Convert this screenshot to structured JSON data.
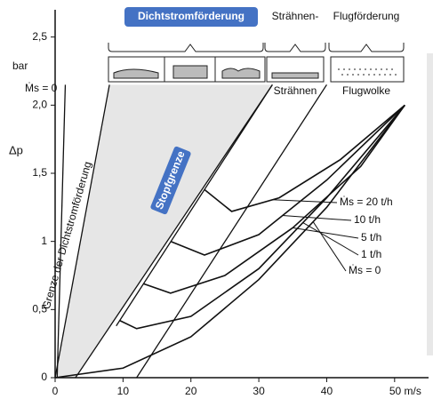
{
  "chart_data": {
    "type": "line",
    "header": "Dichtstromförderung",
    "top_labels": [
      "Strähnen-",
      "Flugförderung"
    ],
    "regime_labels": [
      "Strähnen",
      "Flugwolke"
    ],
    "y_unit": "bar",
    "y_label": "Δp",
    "zero_label": "Ṁs = 0",
    "boundary_label": "Grenze der Dichtstromförderung",
    "limit_label": "Stopfgrenze",
    "xlim": [
      0,
      55
    ],
    "ylim": [
      0,
      2.7
    ],
    "xticks": [
      0,
      10,
      20,
      30,
      40,
      {
        "value": 50,
        "label": "50 m/s"
      }
    ],
    "yticks": [
      0,
      {
        "value": 0.5,
        "label": "0,5"
      },
      1,
      {
        "value": 1.5,
        "label": "1,5"
      },
      {
        "value": 2.0,
        "label": "2,0"
      },
      {
        "value": 2.5,
        "label": "2,5"
      }
    ],
    "series": [
      {
        "name": "Ṁs = 20 t/h",
        "color": "#111111",
        "x": [
          22,
          26,
          33,
          42,
          51.5
        ],
        "values": [
          1.38,
          1.22,
          1.32,
          1.6,
          2.0
        ]
      },
      {
        "name": "10 t/h",
        "color": "#111111",
        "x": [
          17,
          22,
          30,
          40,
          51.5
        ],
        "values": [
          1.0,
          0.9,
          1.05,
          1.45,
          2.0
        ]
      },
      {
        "name": "5 t/h",
        "color": "#111111",
        "x": [
          13,
          17,
          25,
          35,
          45,
          51.5
        ],
        "values": [
          0.69,
          0.62,
          0.75,
          1.1,
          1.55,
          2.0
        ]
      },
      {
        "name": "1 t/h",
        "color": "#111111",
        "x": [
          9.5,
          12,
          20,
          30,
          40,
          51.5
        ],
        "values": [
          0.42,
          0.36,
          0.45,
          0.8,
          1.32,
          2.0
        ]
      },
      {
        "name": "Ṁs = 0",
        "color": "#111111",
        "x": [
          0,
          10,
          20,
          30,
          40,
          51.5
        ],
        "values": [
          0,
          0.07,
          0.3,
          0.72,
          1.25,
          2.0
        ]
      }
    ],
    "boundaries": [
      {
        "x": [
          0,
          8
        ],
        "values": [
          0,
          2.15
        ]
      },
      {
        "x": [
          0.3,
          1.5
        ],
        "values": [
          0,
          2.15
        ]
      },
      {
        "x": [
          9,
          32
        ],
        "values": [
          0.38,
          2.15
        ]
      },
      {
        "x": [
          3,
          32
        ],
        "values": [
          0,
          2.15
        ]
      },
      {
        "x": [
          12,
          40
        ],
        "values": [
          0,
          2.15
        ]
      }
    ]
  }
}
